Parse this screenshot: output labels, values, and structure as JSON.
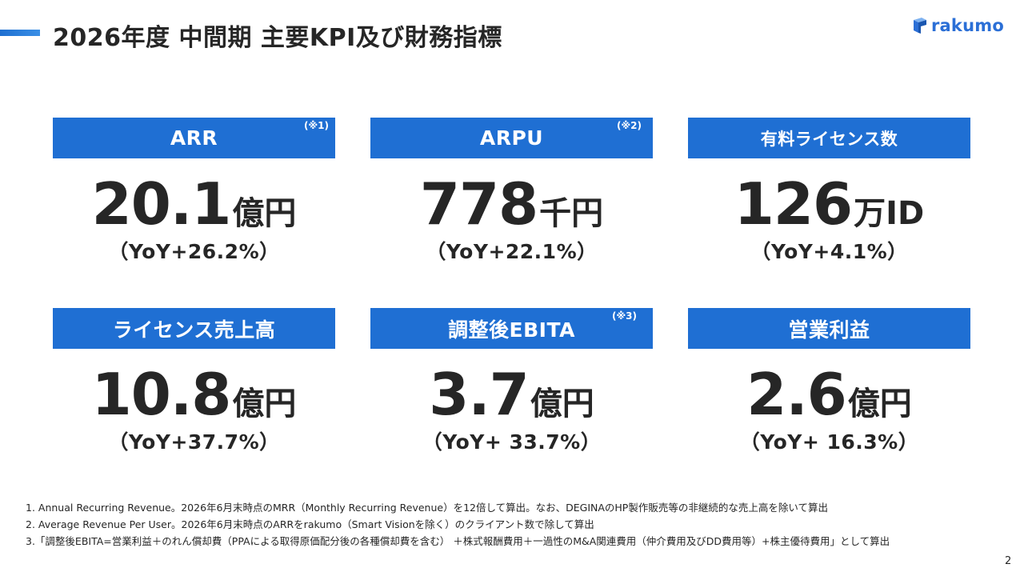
{
  "header": {
    "title": "2026年度 中間期 主要KPI及び財務指標",
    "logo_text": "rakumo"
  },
  "colors": {
    "accent": "#1f6fd3",
    "text": "#262626",
    "logo": "#2b6fd6"
  },
  "kpis": [
    {
      "label": "ARR",
      "note": "(※1)",
      "value": "20.1",
      "unit": "億円",
      "yoy": "（YoY+26.2%）"
    },
    {
      "label": "ARPU",
      "note": "(※2)",
      "value": "778",
      "unit": "千円",
      "yoy": "（YoY+22.1%）"
    },
    {
      "label": "有料ライセンス数",
      "note": "",
      "value": "126",
      "unit": "万ID",
      "yoy": "（YoY+4.1%）"
    },
    {
      "label": "ライセンス売上高",
      "note": "",
      "value": "10.8",
      "unit": "億円",
      "yoy": "（YoY+37.7%）"
    },
    {
      "label": "調整後EBITA",
      "note": "(※3)",
      "value": "3.7",
      "unit": "億円",
      "yoy": "（YoY+ 33.7%）"
    },
    {
      "label": "営業利益",
      "note": "",
      "value": "2.6",
      "unit": "億円",
      "yoy": "（YoY+ 16.3%）"
    }
  ],
  "footnotes": [
    "1. Annual Recurring Revenue。2026年6月末時点のMRR（Monthly Recurring Revenue）を12倍して算出。なお、DEGINAのHP製作販売等の非継続的な売上高を除いて算出",
    "2. Average Revenue Per User。2026年6月末時点のARRをrakumo（Smart Visionを除く）のクライアント数で除して算出",
    "3.「調整後EBITA=営業利益＋のれん償却費（PPAによる取得原価配分後の各種償却費を含む） ＋株式報酬費用＋一過性のM&A関連費用（仲介費用及びDD費用等）+株主優待費用」として算出"
  ],
  "page_number": "2"
}
